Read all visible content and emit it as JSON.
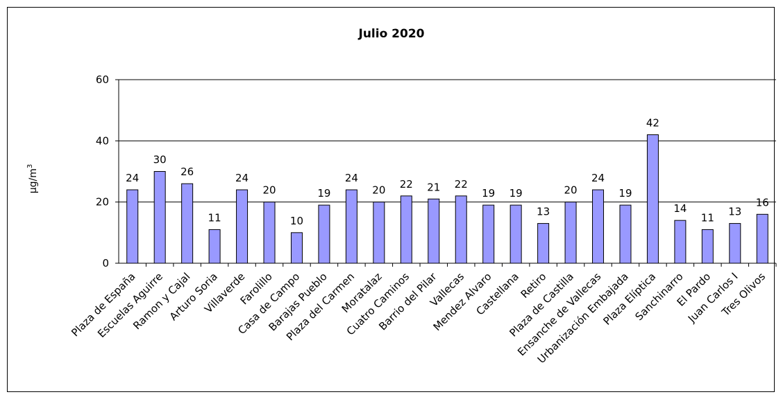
{
  "chart_data": {
    "type": "bar",
    "title": "Julio 2020",
    "xlabel": "",
    "ylabel": "µg/m",
    "ylabel_superscript": "3",
    "ylim": [
      0,
      60
    ],
    "yticks": [
      "0",
      "20",
      "40",
      "60"
    ],
    "grid": true,
    "bar_color": "#9999ff",
    "categories": [
      "Plaza de España",
      "Escuelas Aguirre",
      "Ramon y Cajal",
      "Arturo Soria",
      "Villaverde",
      "Farolillo",
      "Casa de Campo",
      "Barajas Pueblo",
      "Plaza del Carmen",
      "Moratalaz",
      "Cuatro Caminos",
      "Barrio del Pilar",
      "Vallecas",
      "Mendez Alvaro",
      "Castellana",
      "Retiro",
      "Plaza de Castilla",
      "Ensanche de Vallecas",
      "Urbanización Embajada",
      "Plaza Elíptica",
      "Sanchinarro",
      "El Pardo",
      "Juan Carlos I",
      "Tres Olivos"
    ],
    "values": [
      24,
      30,
      26,
      11,
      24,
      20,
      10,
      19,
      24,
      20,
      22,
      21,
      22,
      19,
      19,
      13,
      20,
      24,
      19,
      42,
      14,
      11,
      13,
      16
    ],
    "data_labels": [
      "24",
      "",
      "26",
      "11",
      "24",
      "20",
      "10",
      "19",
      "24",
      "20",
      "22",
      "21",
      "22",
      "19",
      "19",
      "13",
      "20",
      "24",
      "19",
      "42",
      "14",
      "11",
      "13",
      "16"
    ],
    "data_label_top": "30"
  }
}
